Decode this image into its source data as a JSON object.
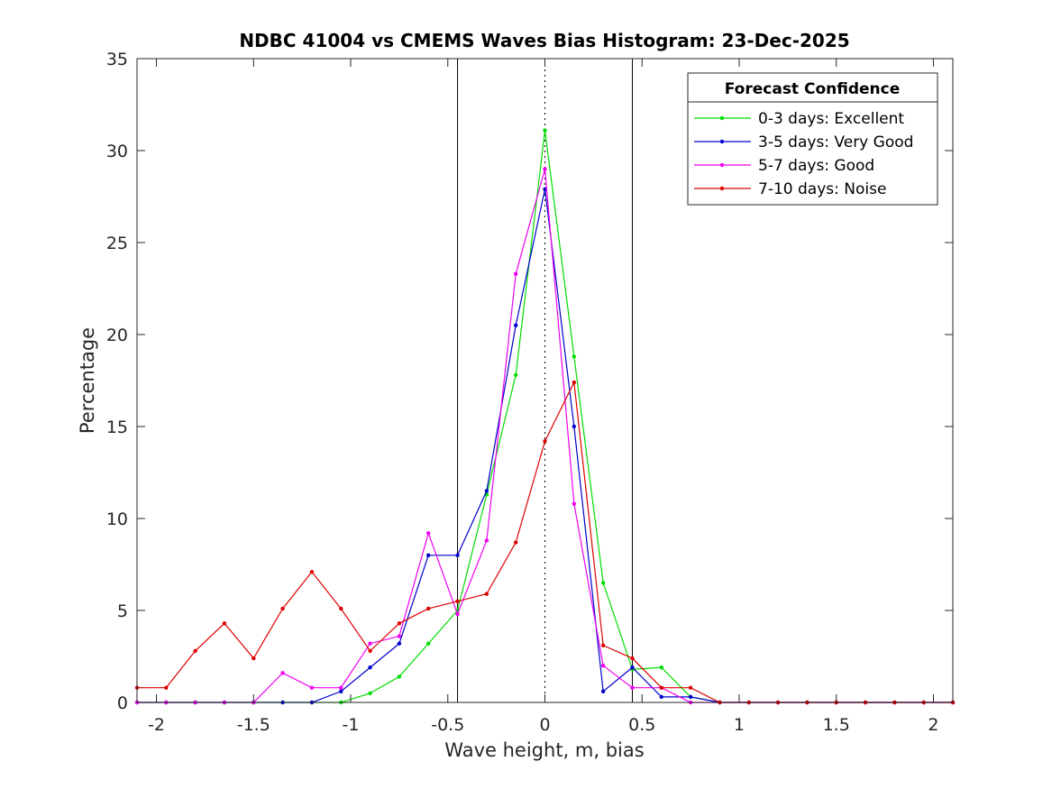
{
  "chart_data": {
    "type": "line",
    "title": "NDBC 41004 vs CMEMS Waves Bias Histogram: 23-Dec-2025",
    "xlabel": "Wave height, m, bias",
    "ylabel": "Percentage",
    "xlim": [
      -2.1,
      2.1
    ],
    "ylim": [
      0,
      35
    ],
    "x_ticks": [
      -2,
      -1.5,
      -1,
      -0.5,
      0,
      0.5,
      1,
      1.5,
      2
    ],
    "x_tick_labels": [
      "-2",
      "-1.5",
      "-1",
      "-0.5",
      "0",
      "0.5",
      "1",
      "1.5",
      "2"
    ],
    "y_ticks": [
      0,
      5,
      10,
      15,
      20,
      25,
      30,
      35
    ],
    "y_tick_labels": [
      "0",
      "5",
      "10",
      "15",
      "20",
      "25",
      "30",
      "35"
    ],
    "vertical_lines": [
      {
        "x": -0.45,
        "style": "solid"
      },
      {
        "x": 0,
        "style": "dotted"
      },
      {
        "x": 0.45,
        "style": "solid"
      }
    ],
    "legend": {
      "title": "Forecast Confidence",
      "placement": "top-right"
    },
    "x": [
      -2.1,
      -1.95,
      -1.8,
      -1.65,
      -1.5,
      -1.35,
      -1.2,
      -1.05,
      -0.9,
      -0.75,
      -0.6,
      -0.45,
      -0.3,
      -0.15,
      0,
      0.15,
      0.3,
      0.45,
      0.6,
      0.75,
      0.9,
      1.05,
      1.2,
      1.35,
      1.5,
      1.65,
      1.8,
      1.95,
      2.1
    ],
    "series": [
      {
        "name": "0-3 days: Excellent",
        "color": "#00dd00",
        "values": [
          0,
          0,
          0,
          0,
          0,
          0,
          0,
          0,
          0.5,
          1.4,
          3.2,
          5.0,
          11.3,
          17.8,
          31.1,
          18.8,
          6.5,
          1.8,
          1.9,
          0.3,
          0,
          0,
          0,
          0,
          0,
          0,
          0,
          0,
          0
        ]
      },
      {
        "name": "3-5 days: Very Good",
        "color": "#0000cc",
        "values": [
          0,
          0,
          0,
          0,
          0,
          0,
          0,
          0.6,
          1.9,
          3.2,
          8.0,
          8.0,
          11.5,
          20.5,
          27.9,
          15.0,
          0.6,
          1.9,
          0.3,
          0.3,
          0,
          0,
          0,
          0,
          0,
          0,
          0,
          0,
          0
        ]
      },
      {
        "name": "5-7 days: Good",
        "color": "#ee00ee",
        "values": [
          0,
          0,
          0,
          0,
          0,
          1.6,
          0.8,
          0.8,
          3.2,
          3.6,
          9.2,
          4.8,
          8.8,
          23.3,
          29.0,
          10.8,
          2.0,
          0.8,
          0.8,
          0,
          0,
          0,
          0,
          0,
          0,
          0,
          0,
          0,
          0
        ]
      },
      {
        "name": "7-10 days: Noise",
        "color": "#dd0000",
        "values": [
          0.8,
          0.8,
          2.8,
          4.3,
          2.4,
          5.1,
          7.1,
          5.1,
          2.8,
          4.3,
          5.1,
          5.5,
          5.9,
          8.7,
          14.2,
          17.4,
          3.1,
          2.4,
          0.8,
          0.8,
          0,
          0,
          0,
          0,
          0,
          0,
          0,
          0,
          0
        ]
      }
    ]
  }
}
